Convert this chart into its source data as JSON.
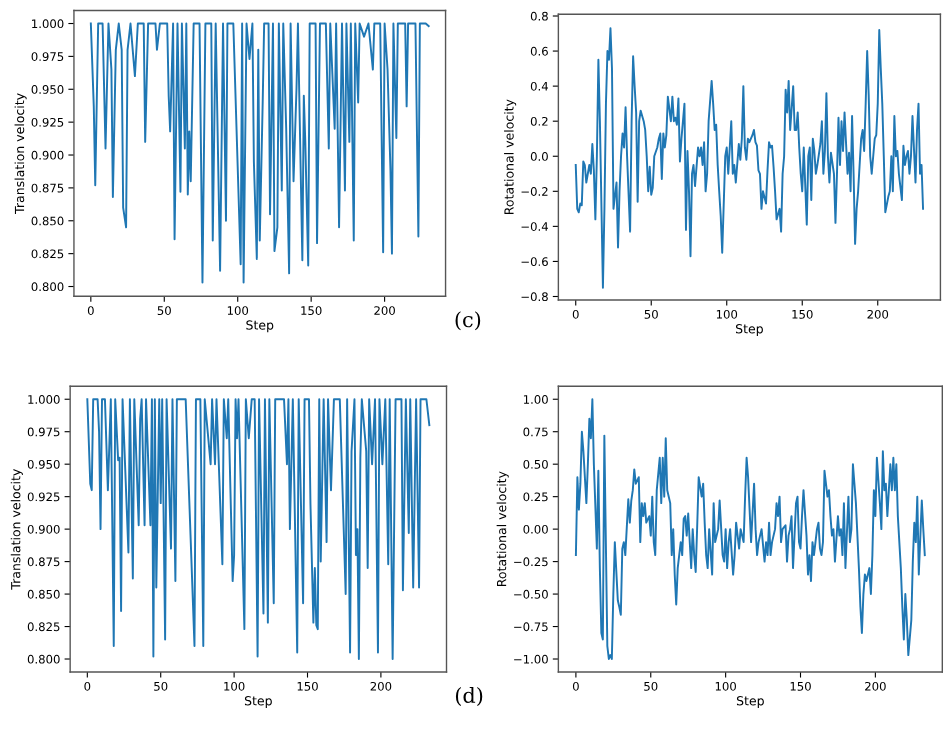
{
  "chart_data": [
    {
      "type": "line",
      "xlabel": "Step",
      "ylabel": "Translation velocity",
      "xlim": [
        -11.5,
        241.5
      ],
      "ylim": [
        0.7926,
        1.0099
      ],
      "xticks": [
        0,
        50,
        100,
        150,
        200
      ],
      "yticks": [
        {
          "value": 0.8,
          "label": "0.800"
        },
        {
          "value": 0.825,
          "label": "0.825"
        },
        {
          "value": 0.85,
          "label": "0.850"
        },
        {
          "value": 0.875,
          "label": "0.875"
        },
        {
          "value": 0.9,
          "label": "0.900"
        },
        {
          "value": 0.925,
          "label": "0.925"
        },
        {
          "value": 0.95,
          "label": "0.950"
        },
        {
          "value": 0.975,
          "label": "0.975"
        },
        {
          "value": 1.0,
          "label": "1.000"
        }
      ],
      "annotations": [
        "(c)"
      ],
      "series": [
        {
          "color": "#1f77b4",
          "x": [
            0,
            2,
            3,
            5,
            8,
            10,
            12,
            14,
            15,
            17,
            19,
            21,
            22,
            24,
            25,
            27,
            30,
            32,
            36,
            37,
            39,
            44,
            45,
            47,
            52,
            53,
            54,
            56,
            57,
            59,
            61,
            62,
            64,
            65,
            66,
            67,
            68,
            70,
            74,
            76,
            78,
            82,
            83,
            85,
            88,
            90,
            92,
            93,
            97,
            102,
            103,
            104,
            106,
            108,
            110,
            111,
            113,
            114,
            115,
            117,
            118,
            121,
            122,
            124,
            125,
            127,
            128,
            130,
            131,
            133,
            135,
            136,
            138,
            140,
            141,
            144,
            145,
            146,
            148,
            149,
            153,
            154,
            156,
            160,
            162,
            163,
            166,
            167,
            169,
            171,
            173,
            174,
            176,
            177,
            179,
            180,
            182,
            183,
            186,
            189,
            192,
            193,
            197,
            199,
            200,
            202,
            204,
            205,
            206,
            208,
            209,
            214,
            215,
            216,
            221,
            223,
            224,
            228,
            230
          ],
          "values": [
            1.0,
            0.937,
            0.877,
            1.0,
            1.0,
            0.905,
            1.0,
            0.965,
            0.868,
            0.98,
            1.0,
            0.98,
            0.86,
            0.845,
            0.98,
            1.0,
            0.96,
            1.0,
            1.0,
            0.91,
            1.0,
            1.0,
            0.98,
            1.0,
            1.0,
            0.945,
            0.918,
            1.0,
            0.836,
            1.0,
            0.872,
            1.0,
            0.905,
            1.0,
            0.87,
            0.918,
            0.88,
            1.0,
            1.0,
            0.803,
            1.0,
            1.0,
            0.835,
            1.0,
            0.812,
            1.0,
            0.85,
            1.0,
            1.0,
            0.817,
            1.0,
            0.803,
            1.0,
            0.973,
            1.0,
            0.895,
            0.821,
            0.98,
            0.835,
            0.94,
            1.0,
            1.0,
            0.855,
            1.0,
            0.827,
            0.845,
            1.0,
            0.873,
            1.0,
            0.92,
            0.81,
            1.0,
            0.88,
            0.95,
            1.0,
            0.82,
            0.945,
            0.91,
            0.816,
            1.0,
            1.0,
            0.833,
            1.0,
            1.0,
            0.905,
            1.0,
            0.92,
            1.0,
            0.845,
            1.0,
            0.873,
            1.0,
            0.91,
            1.0,
            0.835,
            1.0,
            0.94,
            1.0,
            0.99,
            1.0,
            0.965,
            1.0,
            1.0,
            0.826,
            1.0,
            0.965,
            0.888,
            0.825,
            1.0,
            0.913,
            1.0,
            1.0,
            0.937,
            1.0,
            1.0,
            0.838,
            1.0,
            1.0,
            0.998
          ]
        }
      ]
    },
    {
      "type": "line",
      "xlabel": "Step",
      "ylabel": "Rotational velocity",
      "xlim": [
        -11.5,
        241.5
      ],
      "ylim": [
        -0.82,
        0.81
      ],
      "xticks": [
        0,
        50,
        100,
        150,
        200
      ],
      "yticks": [
        {
          "value": -0.8,
          "label": "−0.8"
        },
        {
          "value": -0.6,
          "label": "−0.6"
        },
        {
          "value": -0.4,
          "label": "−0.4"
        },
        {
          "value": -0.2,
          "label": "−0.2"
        },
        {
          "value": 0.0,
          "label": "0.0"
        },
        {
          "value": 0.2,
          "label": "0.2"
        },
        {
          "value": 0.4,
          "label": "0.4"
        },
        {
          "value": 0.6,
          "label": "0.6"
        },
        {
          "value": 0.8,
          "label": "0.8"
        }
      ],
      "series": [
        {
          "color": "#1f77b4",
          "x": [
            0,
            1,
            2,
            3,
            4,
            5,
            6,
            7,
            9,
            10,
            11,
            12,
            13,
            14,
            15,
            16,
            18,
            19,
            20,
            21,
            22,
            23,
            24,
            25,
            27,
            28,
            29,
            30,
            31,
            32,
            33,
            34,
            36,
            37,
            38,
            39,
            40,
            41,
            42,
            43,
            45,
            46,
            47,
            48,
            49,
            50,
            51,
            52,
            54,
            55,
            56,
            57,
            58,
            59,
            60,
            61,
            63,
            64,
            65,
            66,
            67,
            68,
            69,
            70,
            72,
            73,
            74,
            75,
            76,
            77,
            78,
            79,
            81,
            82,
            83,
            84,
            85,
            86,
            87,
            88,
            90,
            91,
            92,
            93,
            94,
            95,
            96,
            97,
            99,
            100,
            101,
            102,
            103,
            104,
            105,
            106,
            108,
            109,
            110,
            111,
            112,
            113,
            114,
            115,
            117,
            118,
            119,
            120,
            121,
            122,
            123,
            124,
            126,
            127,
            128,
            129,
            130,
            131,
            132,
            133,
            135,
            136,
            137,
            138,
            139,
            140,
            141,
            142,
            144,
            145,
            146,
            147,
            148,
            149,
            150,
            151,
            153,
            154,
            155,
            156,
            157,
            158,
            159,
            160,
            162,
            163,
            164,
            165,
            166,
            167,
            168,
            169,
            171,
            172,
            173,
            174,
            175,
            176,
            177,
            178,
            180,
            181,
            182,
            183,
            184,
            185,
            186,
            187,
            189,
            190,
            191,
            192,
            193,
            194,
            195,
            196,
            198,
            199,
            200,
            201,
            202,
            203,
            204,
            205,
            207,
            208,
            209,
            210,
            211,
            212,
            213,
            214,
            216,
            217,
            218,
            219,
            220,
            221,
            222,
            223,
            225,
            226,
            227,
            228,
            229,
            230
          ],
          "values": [
            -0.05,
            -0.3,
            -0.32,
            -0.27,
            -0.28,
            -0.03,
            -0.05,
            -0.15,
            -0.05,
            -0.1,
            0.07,
            -0.08,
            -0.36,
            0.0,
            0.55,
            0.2,
            -0.75,
            -0.3,
            0.3,
            0.6,
            0.55,
            0.73,
            0.5,
            -0.3,
            -0.15,
            -0.52,
            -0.2,
            0.0,
            0.13,
            0.05,
            0.28,
            0.0,
            -0.43,
            0.2,
            0.57,
            0.4,
            0.25,
            -0.26,
            0.2,
            0.26,
            0.2,
            0.15,
            0.0,
            -0.2,
            -0.06,
            -0.22,
            -0.18,
            0.0,
            0.05,
            0.1,
            0.13,
            -0.13,
            0.13,
            0.05,
            0.12,
            0.34,
            0.2,
            0.34,
            0.2,
            0.22,
            0.18,
            0.33,
            -0.03,
            0.1,
            0.3,
            -0.42,
            0.03,
            -0.2,
            -0.57,
            -0.1,
            -0.05,
            -0.17,
            0.05,
            0.0,
            0.05,
            -0.05,
            0.08,
            -0.2,
            -0.1,
            0.2,
            0.43,
            0.3,
            0.15,
            0.18,
            -0.05,
            -0.2,
            -0.34,
            -0.55,
            0.0,
            0.05,
            -0.1,
            0.05,
            0.2,
            -0.1,
            -0.05,
            -0.15,
            0.07,
            -0.02,
            0.1,
            0.4,
            0.05,
            -0.02,
            0.1,
            0.08,
            0.12,
            0.15,
            0.08,
            0.06,
            -0.08,
            -0.1,
            -0.3,
            -0.2,
            -0.27,
            -0.08,
            0.08,
            0.05,
            0.06,
            -0.06,
            -0.2,
            -0.36,
            -0.3,
            -0.43,
            -0.1,
            0.0,
            0.38,
            0.25,
            0.43,
            0.15,
            0.4,
            0.15,
            0.15,
            0.25,
            0.05,
            -0.1,
            -0.2,
            0.05,
            -0.39,
            0.0,
            0.05,
            -0.25,
            0.1,
            0.03,
            -0.1,
            -0.05,
            0.07,
            0.2,
            -0.1,
            0.03,
            0.36,
            0.0,
            -0.15,
            0.02,
            -0.1,
            -0.38,
            -0.1,
            0.22,
            -0.05,
            0.2,
            0.03,
            0.25,
            -0.1,
            0.02,
            -0.2,
            0.23,
            -0.1,
            -0.5,
            -0.3,
            -0.2,
            0.1,
            0.15,
            0.03,
            0.3,
            0.6,
            0.35,
            0.0,
            -0.1,
            0.1,
            0.12,
            0.3,
            0.72,
            0.5,
            0.3,
            0.0,
            -0.32,
            -0.23,
            -0.2,
            0.0,
            -0.2,
            0.23,
            0.0,
            0.03,
            -0.1,
            -0.25,
            0.06,
            -0.05,
            0.0,
            0.03,
            -0.1,
            0.0,
            0.23,
            -0.15,
            0.15,
            0.3,
            -0.1,
            -0.05,
            -0.3
          ]
        }
      ]
    },
    {
      "type": "line",
      "xlabel": "Step",
      "ylabel": "Translation velocity",
      "xlim": [
        -11.7,
        244.7
      ],
      "ylim": [
        0.79,
        1.01
      ],
      "xticks": [
        0,
        50,
        100,
        150,
        200
      ],
      "yticks": [
        {
          "value": 0.8,
          "label": "0.800"
        },
        {
          "value": 0.825,
          "label": "0.825"
        },
        {
          "value": 0.85,
          "label": "0.850"
        },
        {
          "value": 0.875,
          "label": "0.875"
        },
        {
          "value": 0.9,
          "label": "0.900"
        },
        {
          "value": 0.925,
          "label": "0.925"
        },
        {
          "value": 0.95,
          "label": "0.950"
        },
        {
          "value": 0.975,
          "label": "0.975"
        },
        {
          "value": 1.0,
          "label": "1.000"
        }
      ],
      "annotations": [
        "(d)"
      ],
      "series": [
        {
          "color": "#1f77b4",
          "x": [
            0,
            2,
            3,
            4,
            7,
            8,
            9,
            10,
            12,
            14,
            16,
            18,
            19,
            21,
            22,
            23,
            24,
            28,
            29,
            31,
            32,
            35,
            36,
            37,
            39,
            40,
            43,
            44,
            45,
            46,
            47,
            49,
            50,
            51,
            53,
            54,
            57,
            58,
            60,
            61,
            67,
            73,
            74,
            77,
            79,
            80,
            84,
            85,
            87,
            88,
            92,
            93,
            95,
            96,
            99,
            100,
            101,
            102,
            103,
            107,
            108,
            110,
            112,
            114,
            116,
            117,
            120,
            121,
            123,
            124,
            127,
            128,
            134,
            136,
            137,
            138,
            140,
            143,
            144,
            147,
            148,
            151,
            152,
            154,
            155,
            156,
            157,
            158,
            159,
            161,
            163,
            164,
            166,
            168,
            172,
            176,
            177,
            179,
            180,
            182,
            183,
            184,
            185,
            186,
            187,
            190,
            191,
            192,
            194,
            196,
            198,
            199,
            201,
            203,
            205,
            206,
            208,
            210,
            214,
            215,
            217,
            219,
            220,
            222,
            224,
            226,
            227,
            231,
            233
          ],
          "values": [
            1.0,
            0.935,
            0.93,
            1.0,
            1.0,
            0.975,
            0.9,
            1.0,
            1.0,
            0.93,
            1.0,
            0.81,
            1.0,
            0.953,
            0.955,
            0.837,
            1.0,
            0.882,
            1.0,
            0.862,
            1.0,
            0.903,
            0.985,
            1.0,
            0.903,
            1.0,
            0.903,
            1.0,
            0.802,
            1.0,
            0.855,
            1.0,
            0.92,
            1.0,
            0.815,
            1.0,
            0.885,
            1.0,
            0.86,
            1.0,
            1.0,
            0.81,
            1.0,
            1.0,
            0.81,
            1.0,
            0.95,
            1.0,
            0.95,
            1.0,
            0.873,
            1.0,
            0.97,
            1.0,
            0.86,
            0.88,
            1.0,
            0.97,
            1.0,
            0.823,
            1.0,
            0.97,
            1.0,
            1.0,
            0.802,
            1.0,
            0.835,
            1.0,
            0.828,
            1.0,
            0.843,
            1.0,
            1.0,
            0.95,
            1.0,
            0.9,
            1.0,
            0.805,
            1.0,
            0.843,
            1.0,
            1.0,
            0.92,
            0.828,
            0.87,
            0.826,
            0.823,
            1.0,
            0.875,
            1.0,
            0.89,
            1.0,
            0.93,
            1.0,
            1.0,
            0.85,
            1.0,
            0.805,
            0.96,
            1.0,
            0.88,
            0.9,
            0.8,
            0.955,
            1.0,
            0.96,
            0.87,
            1.0,
            0.95,
            1.0,
            0.805,
            1.0,
            0.95,
            1.0,
            0.873,
            1.0,
            0.8,
            1.0,
            1.0,
            0.853,
            1.0,
            0.897,
            1.0,
            0.855,
            1.0,
            0.855,
            1.0,
            1.0,
            0.98
          ]
        }
      ]
    },
    {
      "type": "line",
      "xlabel": "Step",
      "ylabel": "Rotational velocity",
      "xlim": [
        -11.7,
        244.7
      ],
      "ylim": [
        -1.1,
        1.1
      ],
      "xticks": [
        0,
        50,
        100,
        150,
        200
      ],
      "yticks": [
        {
          "value": -1.0,
          "label": "−1.00"
        },
        {
          "value": -0.75,
          "label": "−0.75"
        },
        {
          "value": -0.5,
          "label": "−0.50"
        },
        {
          "value": -0.25,
          "label": "−0.25"
        },
        {
          "value": 0.0,
          "label": "0.00"
        },
        {
          "value": 0.25,
          "label": "0.25"
        },
        {
          "value": 0.5,
          "label": "0.50"
        },
        {
          "value": 0.75,
          "label": "0.75"
        },
        {
          "value": 1.0,
          "label": "1.00"
        }
      ],
      "series": [
        {
          "color": "#1f77b4",
          "x": [
            0,
            1,
            2,
            3,
            4,
            5,
            7,
            8,
            9,
            10,
            11,
            12,
            14,
            15,
            16,
            17,
            18,
            19,
            21,
            22,
            23,
            24,
            25,
            26,
            28,
            29,
            30,
            31,
            32,
            33,
            35,
            36,
            37,
            38,
            39,
            40,
            42,
            43,
            44,
            45,
            46,
            47,
            49,
            50,
            51,
            52,
            53,
            54,
            56,
            57,
            58,
            59,
            60,
            61,
            63,
            64,
            65,
            66,
            67,
            68,
            70,
            71,
            72,
            73,
            74,
            75,
            77,
            78,
            79,
            80,
            81,
            82,
            84,
            85,
            86,
            87,
            88,
            89,
            91,
            92,
            93,
            94,
            95,
            96,
            98,
            99,
            100,
            101,
            102,
            103,
            105,
            106,
            107,
            108,
            109,
            110,
            112,
            113,
            114,
            115,
            116,
            117,
            119,
            120,
            121,
            122,
            123,
            124,
            126,
            127,
            128,
            129,
            130,
            131,
            133,
            134,
            135,
            136,
            137,
            138,
            140,
            141,
            142,
            143,
            144,
            145,
            147,
            148,
            149,
            150,
            151,
            152,
            154,
            155,
            156,
            157,
            158,
            159,
            161,
            162,
            163,
            164,
            165,
            166,
            168,
            169,
            170,
            171,
            172,
            173,
            175,
            176,
            177,
            178,
            179,
            180,
            182,
            183,
            184,
            185,
            186,
            187,
            189,
            190,
            191,
            192,
            193,
            194,
            196,
            197,
            198,
            199,
            200,
            201,
            203,
            204,
            205,
            206,
            207,
            208,
            210,
            211,
            212,
            213,
            214,
            215,
            217,
            218,
            219,
            220,
            221,
            222,
            224,
            225,
            226,
            227,
            228,
            229,
            231,
            232,
            233
          ],
          "values": [
            -0.2,
            0.4,
            0.15,
            0.35,
            0.75,
            0.6,
            0.2,
            0.5,
            0.85,
            0.7,
            1.0,
            0.5,
            -0.15,
            0.45,
            -0.3,
            -0.8,
            -0.85,
            0.72,
            -0.9,
            -1.0,
            -0.97,
            -1.0,
            -0.5,
            -0.1,
            -0.55,
            -0.6,
            -0.66,
            -0.15,
            -0.1,
            -0.2,
            0.23,
            0.05,
            0.22,
            0.3,
            0.46,
            0.35,
            0.4,
            -0.1,
            0.2,
            0.1,
            0.2,
            0.05,
            0.1,
            -0.05,
            0.25,
            -0.1,
            -0.2,
            0.3,
            0.55,
            0.2,
            0.55,
            0.25,
            0.7,
            0.3,
            0.2,
            -0.2,
            0.0,
            -0.35,
            -0.58,
            -0.3,
            -0.1,
            -0.2,
            0.08,
            0.1,
            -0.05,
            0.12,
            -0.3,
            0.0,
            -0.2,
            -0.33,
            0.02,
            0.4,
            0.25,
            0.35,
            0.05,
            -0.2,
            -0.3,
            0.0,
            -0.35,
            0.2,
            -0.1,
            -0.05,
            0.0,
            0.22,
            -0.2,
            -0.25,
            0.0,
            -0.3,
            -0.1,
            0.0,
            -0.35,
            -0.2,
            0.05,
            -0.05,
            -0.15,
            0.0,
            -0.1,
            0.25,
            0.55,
            0.4,
            0.15,
            -0.1,
            0.35,
            0.0,
            -0.2,
            -0.1,
            -0.05,
            0.0,
            -0.25,
            -0.1,
            -0.2,
            0.05,
            -0.2,
            -0.1,
            0.0,
            0.2,
            0.1,
            0.25,
            -0.1,
            0.0,
            0.03,
            -0.25,
            -0.05,
            0.0,
            0.1,
            -0.3,
            0.2,
            0.25,
            -0.1,
            -0.15,
            0.1,
            0.3,
            -0.05,
            -0.35,
            -0.2,
            -0.4,
            -0.1,
            -0.2,
            0.0,
            0.05,
            -0.15,
            -0.2,
            -0.1,
            0.45,
            0.25,
            0.3,
            0.1,
            -0.05,
            0.0,
            -0.25,
            0.1,
            -0.05,
            0.0,
            -0.2,
            0.2,
            -0.3,
            0.25,
            -0.1,
            0.0,
            0.5,
            0.35,
            0.2,
            -0.3,
            -0.6,
            -0.8,
            -0.5,
            -0.35,
            -0.4,
            -0.3,
            -0.5,
            -0.2,
            0.3,
            0.1,
            0.55,
            0.2,
            0.0,
            0.6,
            0.3,
            0.35,
            0.1,
            0.5,
            0.3,
            0.55,
            0.3,
            0.5,
            0.1,
            -0.3,
            -0.6,
            -0.85,
            -0.5,
            -0.7,
            -0.97,
            -0.7,
            -0.25,
            0.05,
            -0.1,
            0.25,
            -0.35,
            0.22,
            0.0,
            -0.2
          ]
        }
      ]
    }
  ]
}
